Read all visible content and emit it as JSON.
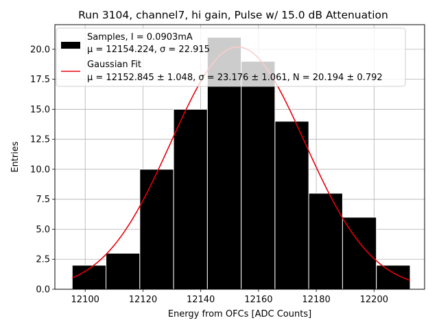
{
  "chart_data": {
    "type": "bar",
    "title": "Run 3104, channel7, hi gain, Pulse w/ 15.0 dB Attenuation",
    "xlabel": "Energy from OFCs [ADC Counts]",
    "ylabel": "Entries",
    "xlim": [
      12089.5,
      12217.5
    ],
    "ylim": [
      0,
      22.05
    ],
    "xticks": [
      12100,
      12120,
      12140,
      12160,
      12180,
      12200
    ],
    "yticks": [
      0.0,
      2.5,
      5.0,
      7.5,
      10.0,
      12.5,
      15.0,
      17.5,
      20.0
    ],
    "ytick_labels": [
      "0.0",
      "2.5",
      "5.0",
      "7.5",
      "10.0",
      "12.5",
      "15.0",
      "17.5",
      "20.0"
    ],
    "grid": true,
    "legend_position": "top-left",
    "histogram": {
      "bin_edges": [
        12095.5,
        12107.2,
        12118.9,
        12130.6,
        12142.3,
        12154.0,
        12165.7,
        12177.4,
        12189.1,
        12200.8,
        12212.5
      ],
      "counts": [
        2,
        3,
        10,
        15,
        21,
        19,
        14,
        8,
        6,
        2
      ],
      "color": "#000000",
      "edgecolor": "#ffffff"
    },
    "fit": {
      "type": "gaussian",
      "mu": 12152.845,
      "sigma": 23.176,
      "N": 20.194,
      "x_range": [
        12095.5,
        12212.5
      ],
      "color": "#e8000b"
    },
    "legend": [
      {
        "kind": "patch",
        "color": "#000000",
        "line1": "Samples, I = 0.0903mA",
        "line2": "μ = 12154.224, σ = 22.915"
      },
      {
        "kind": "line",
        "color": "#e8000b",
        "line1": "Gaussian Fit",
        "line2": "μ = 12152.845 ± 1.048, σ = 23.176 ± 1.061, N = 20.194 ± 0.792"
      }
    ]
  }
}
